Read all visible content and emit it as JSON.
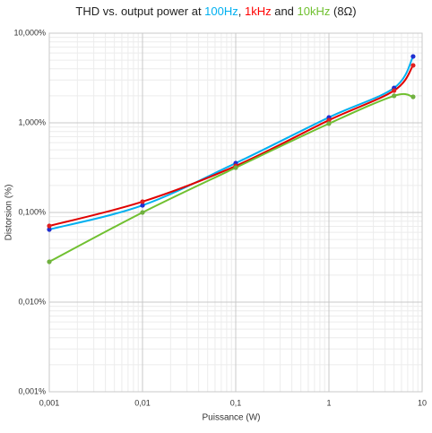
{
  "chart_data": {
    "type": "line",
    "title_parts": [
      {
        "text": "THD vs. output power at ",
        "color": "#222222"
      },
      {
        "text": "100Hz",
        "color": "#00b0f0"
      },
      {
        "text": ", ",
        "color": "#222222"
      },
      {
        "text": "1kHz",
        "color": "#ff0000"
      },
      {
        "text": " and ",
        "color": "#222222"
      },
      {
        "text": "10kHz",
        "color": "#70c030"
      },
      {
        "text": " (8Ω)",
        "color": "#222222"
      }
    ],
    "x_label": "Puissance (W)",
    "y_label": "Distorsion (%)",
    "x": [
      0.001,
      0.01,
      0.1,
      1,
      5,
      8
    ],
    "series": [
      {
        "name": "100Hz",
        "color": "#00b0f0",
        "marker_color": "#1f2fd0",
        "values": [
          0.0646,
          0.12,
          0.355,
          1.15,
          2.45,
          5.5
        ]
      },
      {
        "name": "1kHz",
        "color": "#e00000",
        "marker_color": "#e02020",
        "values": [
          0.0708,
          0.132,
          0.33,
          1.07,
          2.29,
          4.37
        ]
      },
      {
        "name": "10kHz",
        "color": "#70c030",
        "marker_color": "#70b040",
        "values": [
          0.0282,
          0.1,
          0.316,
          0.98,
          2.0,
          1.95
        ]
      }
    ],
    "xlim": [
      0.001,
      10
    ],
    "ylim": [
      0.001,
      10
    ],
    "xscale": "log",
    "yscale": "log",
    "grid": true,
    "xticks": [
      {
        "value": 0.001,
        "label": "0,001"
      },
      {
        "value": 0.01,
        "label": "0,01"
      },
      {
        "value": 0.1,
        "label": "0,1"
      },
      1,
      10
    ],
    "yticks": [
      {
        "value": 0.001,
        "label": "0,001%"
      },
      {
        "value": 0.01,
        "label": "0,010%"
      },
      {
        "value": 0.1,
        "label": "0,100%"
      },
      {
        "value": 1,
        "label": "1,000%"
      },
      {
        "value": 10,
        "label": "10,000%"
      }
    ]
  }
}
